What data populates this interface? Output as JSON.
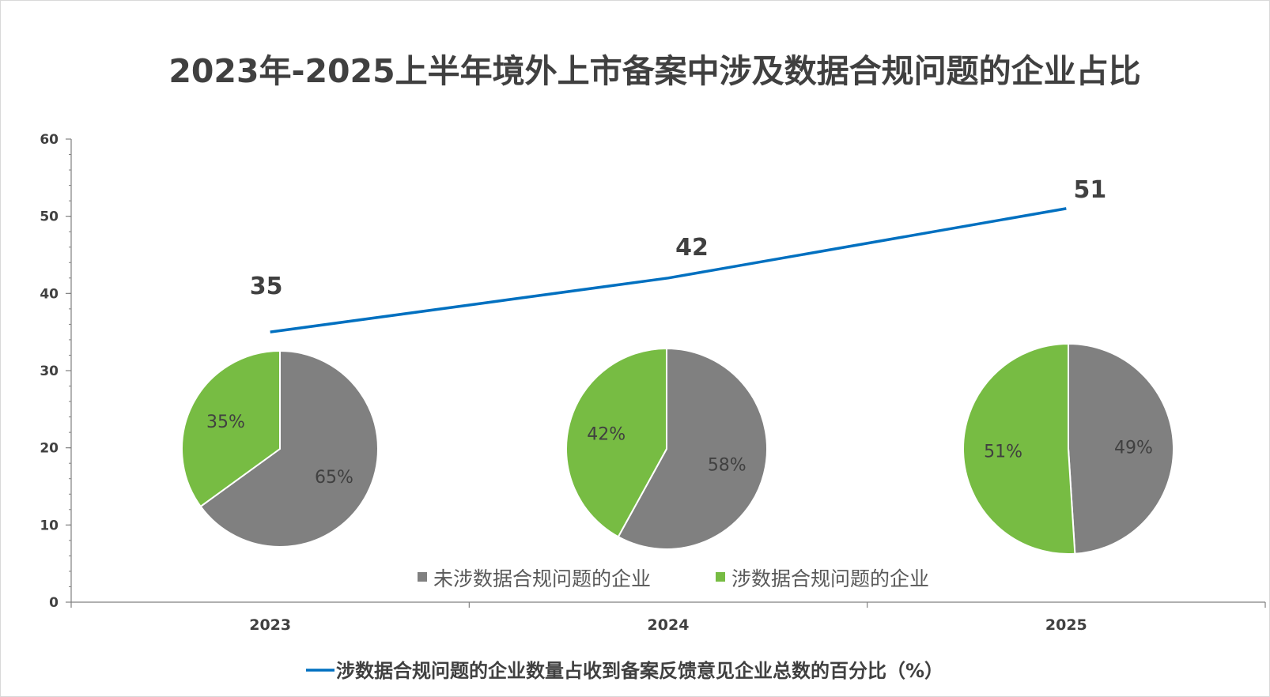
{
  "chart_data": {
    "type": "line",
    "title": "2023年-2025上半年境外上市备案中涉及数据合规问题的企业占比",
    "categories": [
      "2023",
      "2024",
      "2025"
    ],
    "ylim": [
      0,
      60
    ],
    "yticks": [
      0,
      10,
      20,
      30,
      40,
      50,
      60
    ],
    "grid": false,
    "series": [
      {
        "name": "涉数据合规问题的企业数量占收到备案反馈意见企业总数的百分比（%）",
        "values": [
          35,
          42,
          51
        ],
        "color": "#0070C0"
      }
    ],
    "legend_position": "bottom",
    "pies": [
      {
        "category": "2023",
        "slices": [
          {
            "name": "未涉数据合规问题的企业",
            "value": 65,
            "label": "65%",
            "color": "#808080"
          },
          {
            "name": "涉数据合规问题的企业",
            "value": 35,
            "label": "35%",
            "color": "#77BC43"
          }
        ]
      },
      {
        "category": "2024",
        "slices": [
          {
            "name": "未涉数据合规问题的企业",
            "value": 58,
            "label": "58%",
            "color": "#808080"
          },
          {
            "name": "涉数据合规问题的企业",
            "value": 42,
            "label": "42%",
            "color": "#77BC43"
          }
        ]
      },
      {
        "category": "2025",
        "slices": [
          {
            "name": "未涉数据合规问题的企业",
            "value": 49,
            "label": "49%",
            "color": "#808080"
          },
          {
            "name": "涉数据合规问题的企业",
            "value": 51,
            "label": "51%",
            "color": "#77BC43"
          }
        ]
      }
    ],
    "pie_legend": [
      {
        "label": "未涉数据合规问题的企业",
        "color": "#808080"
      },
      {
        "label": "涉数据合规问题的企业",
        "color": "#77BC43"
      }
    ]
  }
}
